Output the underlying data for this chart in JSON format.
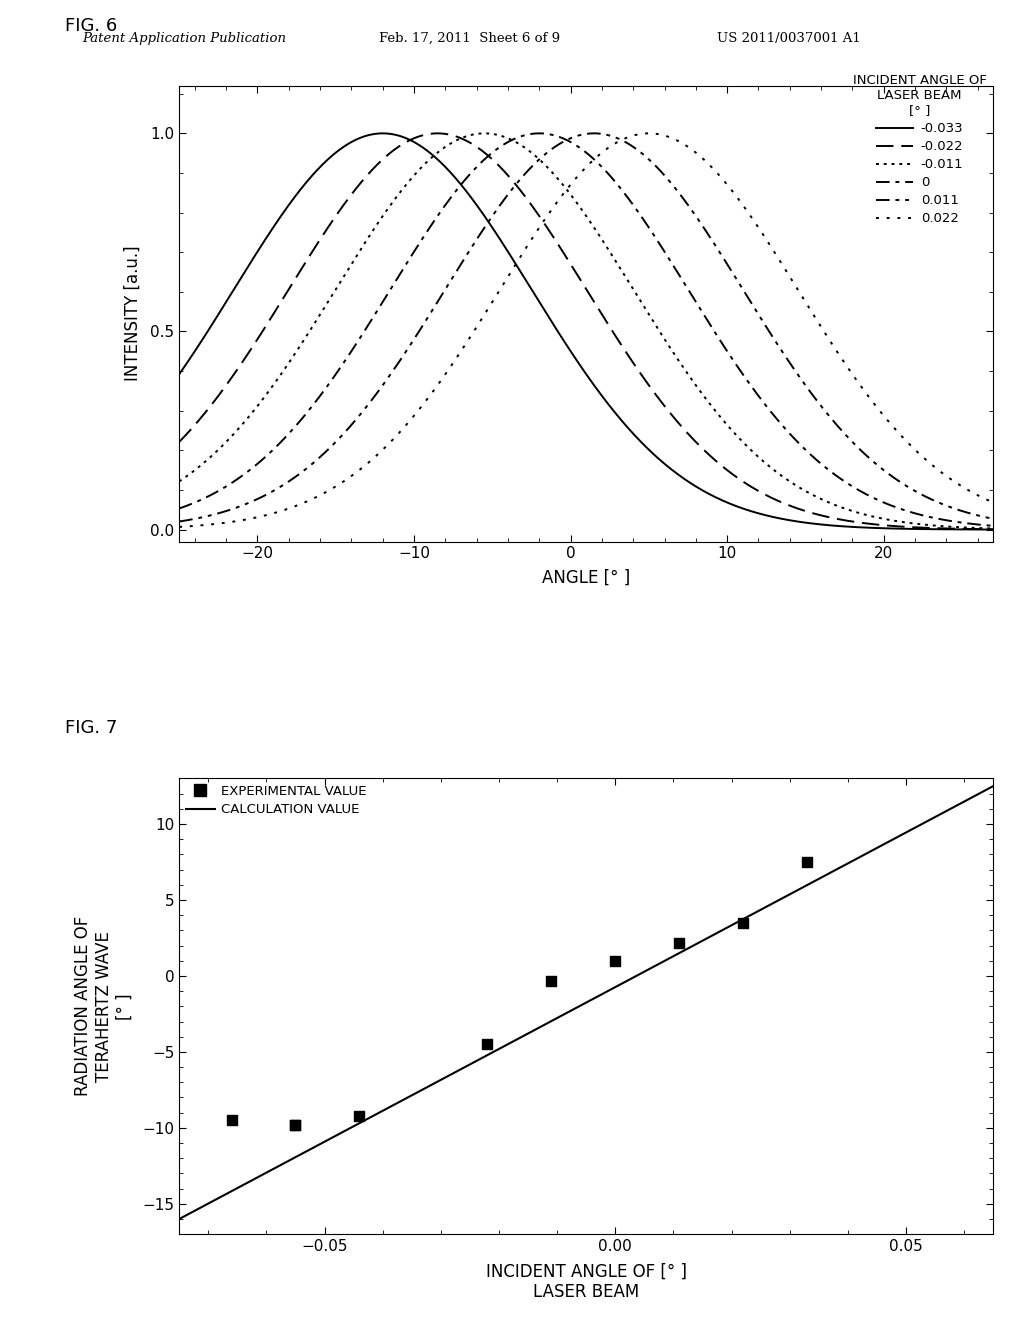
{
  "fig6": {
    "title": "FIG. 6",
    "xlabel": "ANGLE [° ]",
    "ylabel": "INTENSITY [a.u.]",
    "legend_title_line1": "INCIDENT ANGLE OF",
    "legend_title_line2": "LASER BEAM",
    "legend_title_line3": "[° ]",
    "xlim": [
      -25,
      27
    ],
    "ylim": [
      -0.03,
      1.12
    ],
    "xticks": [
      -20,
      -10,
      0,
      10,
      20
    ],
    "yticks": [
      0.0,
      0.5,
      1.0
    ],
    "curves": [
      {
        "label": "-0.033",
        "peak": -12.0,
        "sigma": 9.5,
        "style": "solid",
        "lw": 1.4
      },
      {
        "label": "-0.022",
        "peak": -8.5,
        "sigma": 9.5,
        "style": "dashed",
        "lw": 1.4
      },
      {
        "label": "-0.011",
        "peak": -5.5,
        "sigma": 9.5,
        "style": "dotted",
        "lw": 1.4
      },
      {
        "label": "0",
        "peak": -2.0,
        "sigma": 9.5,
        "style": "dashdot",
        "lw": 1.4
      },
      {
        "label": "0.011",
        "peak": 1.5,
        "sigma": 9.5,
        "style": "dashdotdot",
        "lw": 1.4
      },
      {
        "label": "0.022",
        "peak": 5.0,
        "sigma": 9.5,
        "style": "loosedot",
        "lw": 1.4
      }
    ]
  },
  "fig7": {
    "title": "FIG. 7",
    "xlabel_line1": "INCIDENT ANGLE OF [° ]",
    "xlabel_line2": "LASER BEAM",
    "ylabel_line1": "RADIATION ANGLE OF",
    "ylabel_line2": "TERAHERTZ WAVE",
    "ylabel_line3": "[° ]",
    "xlim": [
      -0.075,
      0.065
    ],
    "ylim": [
      -17,
      13
    ],
    "xticks": [
      -0.05,
      0.0,
      0.05
    ],
    "yticks": [
      -15,
      -10,
      -5,
      0,
      5,
      10
    ],
    "exp_x": [
      -0.066,
      -0.055,
      -0.055,
      -0.044,
      -0.022,
      -0.011,
      0.0,
      0.011,
      0.022,
      0.033
    ],
    "exp_y": [
      -9.5,
      -9.8,
      -9.8,
      -9.2,
      -4.5,
      -0.3,
      1.0,
      2.2,
      3.5,
      7.5
    ],
    "line_x": [
      -0.075,
      0.065
    ],
    "line_y": [
      -16.0,
      12.5
    ],
    "legend_exp": "EXPERIMENTAL VALUE",
    "legend_calc": "CALCULATION VALUE"
  },
  "header_left": "Patent Application Publication",
  "header_center": "Feb. 17, 2011  Sheet 6 of 9",
  "header_right": "US 2011/0037001 A1",
  "background_color": "#ffffff",
  "text_color": "#000000"
}
